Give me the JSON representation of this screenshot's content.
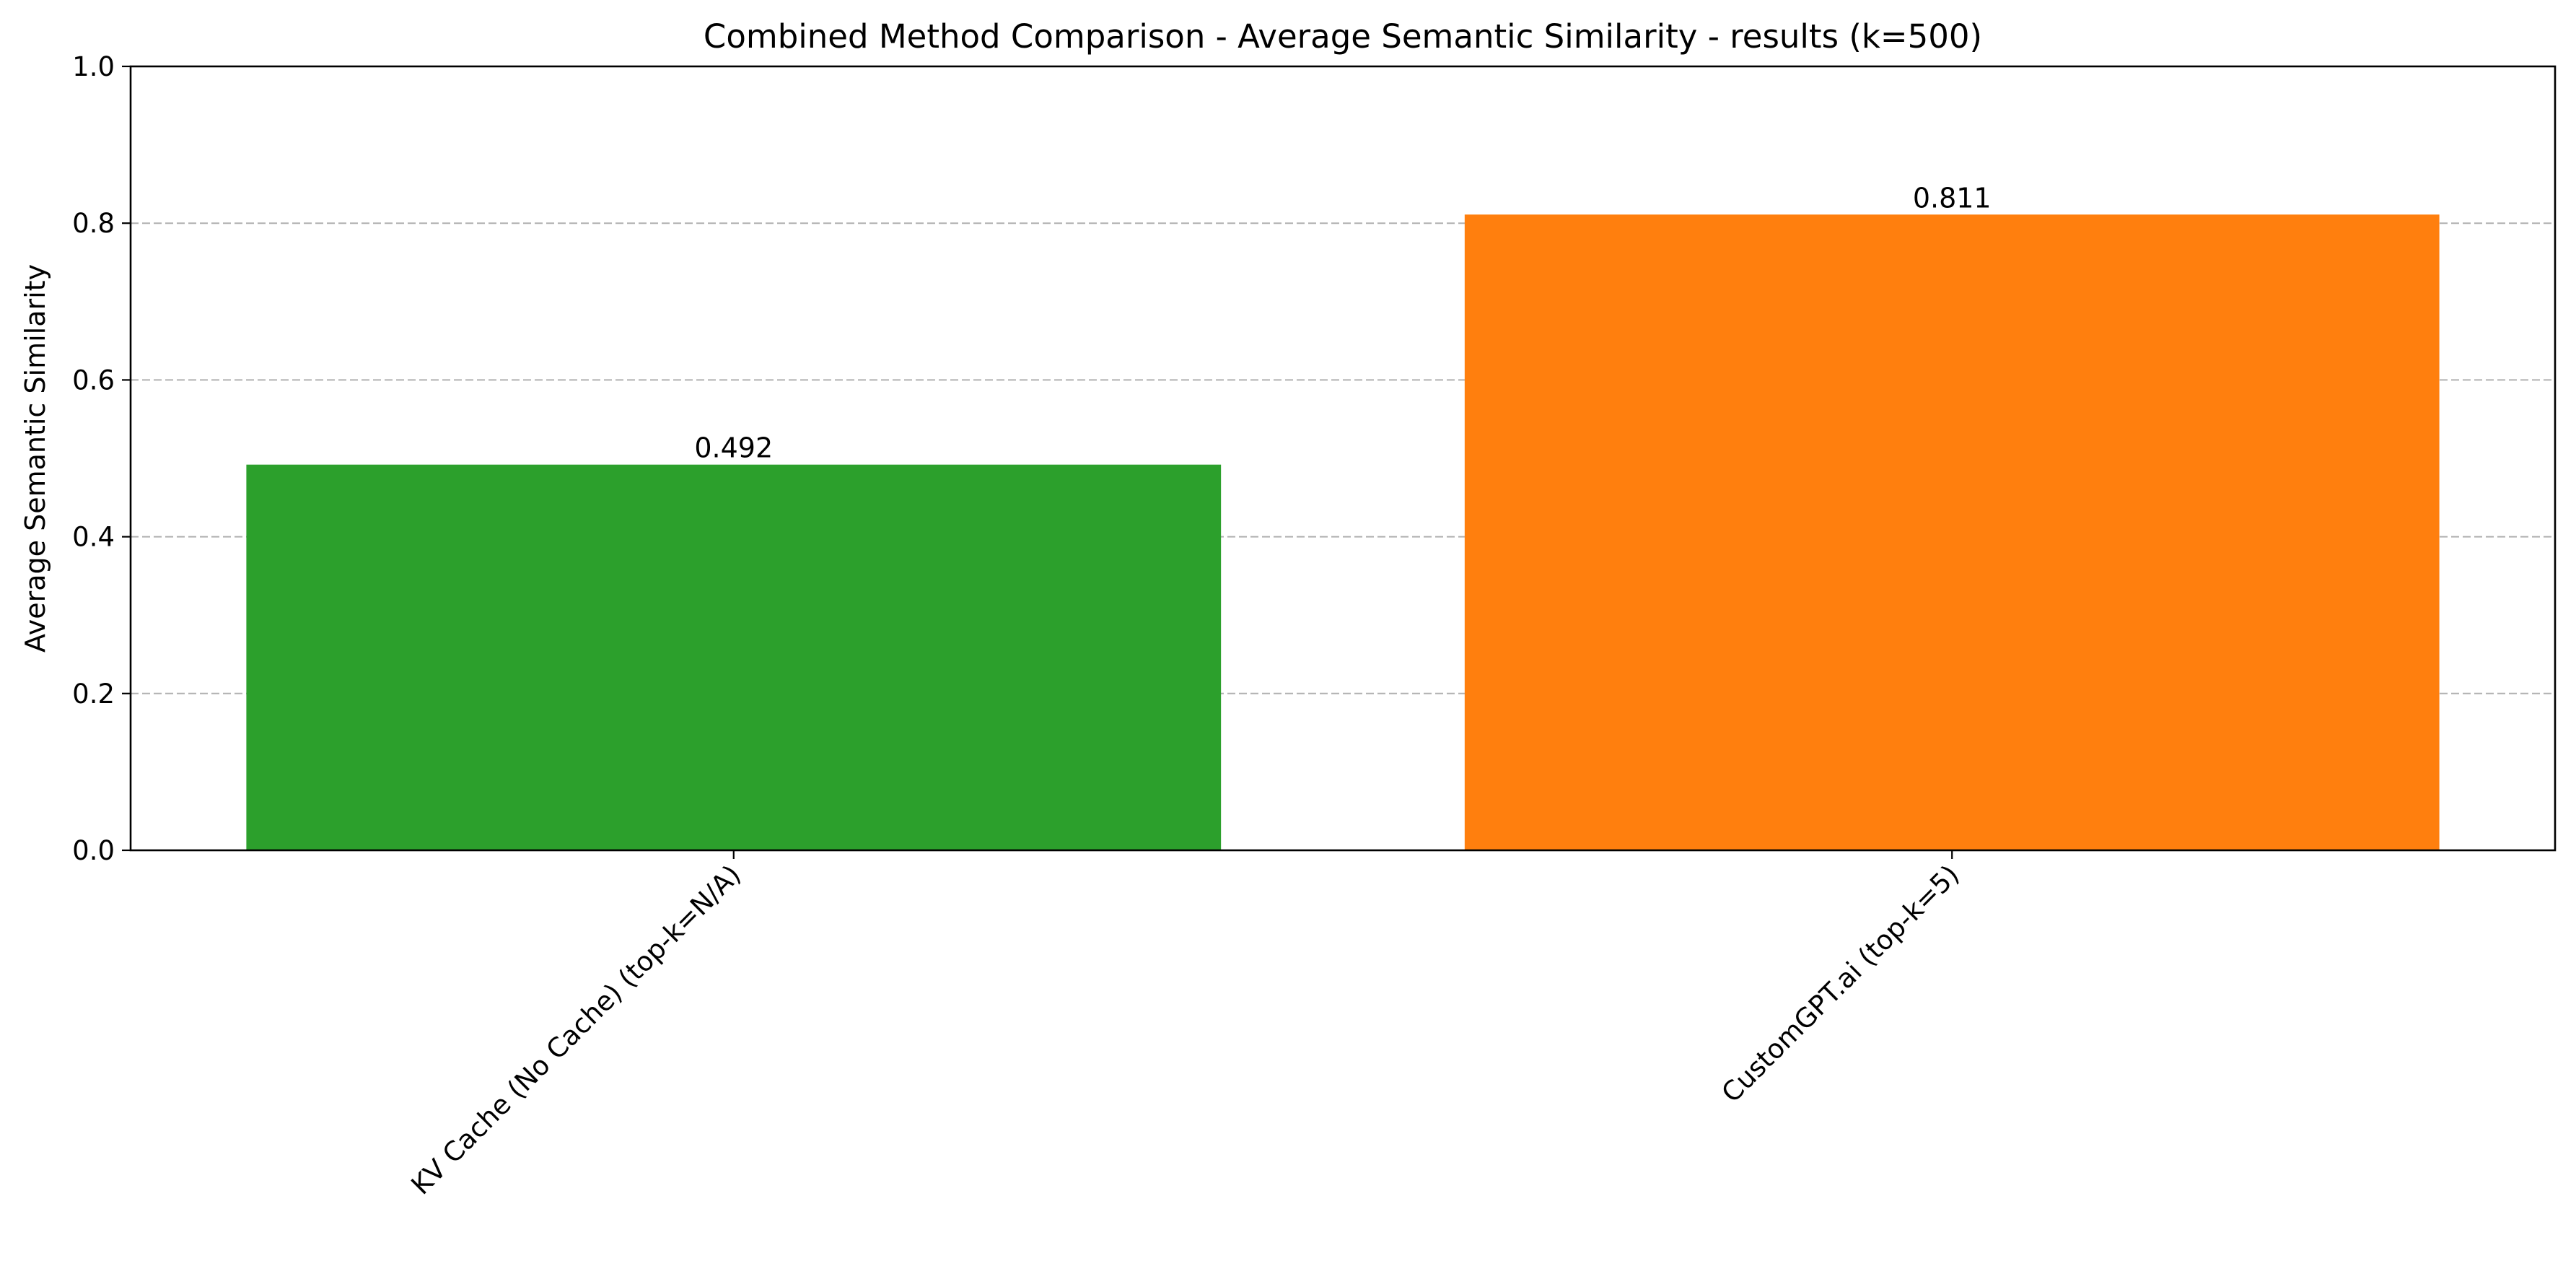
{
  "chart_data": {
    "type": "bar",
    "title": "Combined Method Comparison - Average Semantic Similarity - results (k=500)",
    "xlabel": "",
    "ylabel": "Average Semantic Similarity",
    "categories": [
      "KV Cache (No Cache) (top-k=N/A)",
      "CustomGPT.ai (top-k=5)"
    ],
    "values": [
      0.492,
      0.811
    ],
    "data_labels": [
      "0.492",
      "0.811"
    ],
    "bar_colors": [
      "#2ca02c",
      "#ff7f0e"
    ],
    "ylim": [
      0,
      1.0
    ],
    "yticks": [
      0.0,
      0.2,
      0.4,
      0.6,
      0.8,
      1.0
    ],
    "ytick_labels": [
      "0.0",
      "0.2",
      "0.4",
      "0.6",
      "0.8",
      "1.0"
    ],
    "grid": "horizontal-dashed",
    "legend": "none"
  }
}
